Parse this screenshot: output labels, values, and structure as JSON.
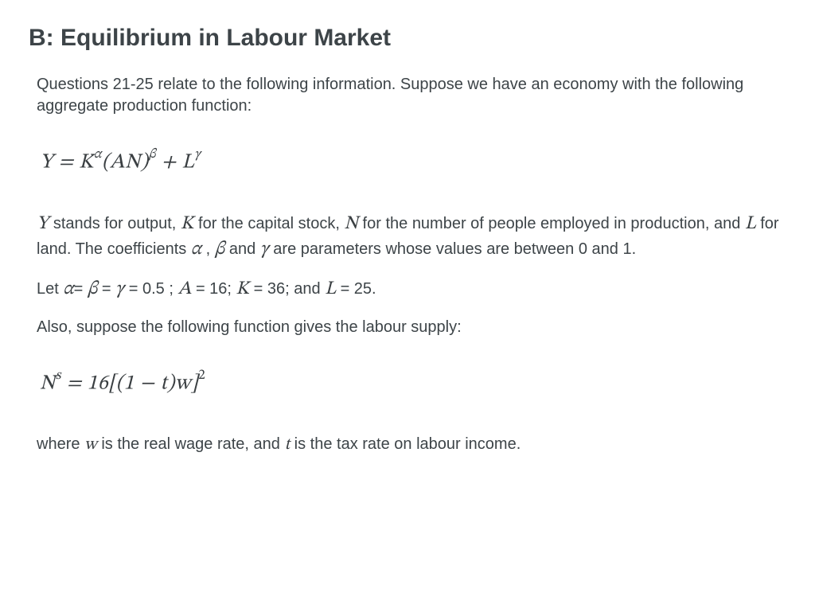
{
  "title": "B: Equilibrium in Labour Market",
  "intro": "Questions 21-25 relate to the following information. Suppose we have an economy with the following aggregate production function:",
  "equation1": {
    "Y": "Y",
    "eq": " = ",
    "K": "K",
    "alpha": "α",
    "open": "(AN)",
    "beta": "β",
    "plus": " + ",
    "L": "L",
    "gamma": "γ"
  },
  "para1_parts": {
    "p1": " stands for output, ",
    "p2": " for the capital stock, ",
    "p3": " for the number of people employed in production, and ",
    "p4": " for land. The coefficients ",
    "comma": " , ",
    "p5": " and ",
    "p6": " are parameters whose values are between 0 and 1."
  },
  "vars": {
    "Y": "Y",
    "K": "K",
    "N": "N",
    "L": "L",
    "alpha": "α",
    "beta": "β",
    "gamma": "γ",
    "A": "A",
    "w": "w",
    "t": "t"
  },
  "line_let": {
    "pre": "Let ",
    "ab": "= ",
    "bc": " = ",
    "val1": " = 0.5 ; ",
    "aval": " = 16; ",
    "kval": " = 36; and ",
    "lval": " = 25."
  },
  "line_supply": "Also, suppose the following function gives the labour supply:",
  "equation2": {
    "N": "N",
    "s": "s",
    "eq": " = ",
    "body": "16[(1 − t)w]",
    "exp": "2"
  },
  "line_where": {
    "pre": "where ",
    "mid": " is the real wage rate, and ",
    "post": " is the tax rate on labour income."
  }
}
